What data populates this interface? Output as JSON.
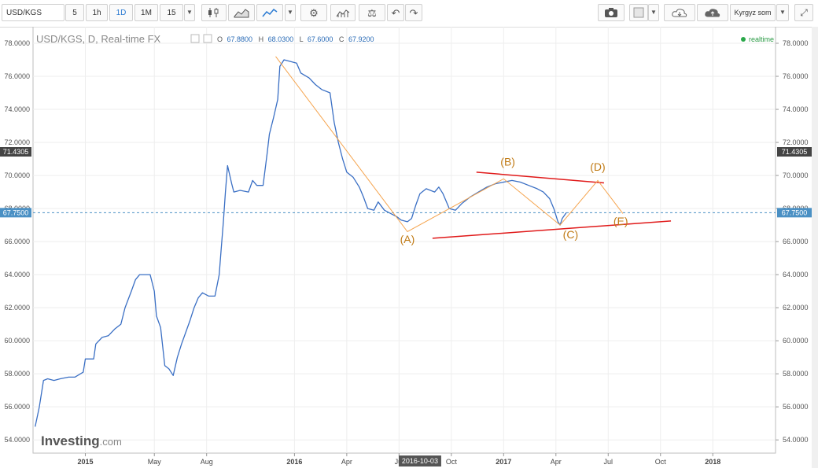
{
  "toolbar": {
    "symbol": "USD/KGS",
    "intervals": [
      "5",
      "1h",
      "1D",
      "1M",
      "15"
    ],
    "active_interval": "1D",
    "currency_label": "Kyrgyz som"
  },
  "header": {
    "title": "USD/KGS, D, Real-time FX",
    "o_label": "O",
    "o_value": "67.8800",
    "h_label": "H",
    "h_value": "68.0300",
    "l_label": "L",
    "l_value": "67.6000",
    "c_label": "C",
    "c_value": "67.9200",
    "realtime": "realtime"
  },
  "watermark": {
    "bold": "Investing",
    "light": ".com"
  },
  "colors": {
    "line": "#3a6fc4",
    "trend": "#e01919",
    "wave": "#f5a44e",
    "wave_label": "#c07a14",
    "current": "#4a90c4",
    "marker": "#444444"
  },
  "chart_data": {
    "type": "line",
    "series": [
      {
        "values": [
          [
            2014.76,
            54.8
          ],
          [
            2014.78,
            56.0
          ],
          [
            2014.8,
            57.6
          ],
          [
            2014.82,
            57.7
          ],
          [
            2014.85,
            57.6
          ],
          [
            2014.88,
            57.7
          ],
          [
            2014.92,
            57.8
          ],
          [
            2014.95,
            57.8
          ],
          [
            2014.99,
            58.1
          ],
          [
            2015.0,
            58.9
          ],
          [
            2015.04,
            58.9
          ],
          [
            2015.05,
            59.8
          ],
          [
            2015.08,
            60.2
          ],
          [
            2015.11,
            60.3
          ],
          [
            2015.14,
            60.7
          ],
          [
            2015.17,
            61.0
          ],
          [
            2015.19,
            62.0
          ],
          [
            2015.22,
            63.0
          ],
          [
            2015.24,
            63.7
          ],
          [
            2015.26,
            64.0
          ],
          [
            2015.28,
            64.0
          ],
          [
            2015.31,
            64.0
          ],
          [
            2015.33,
            63.0
          ],
          [
            2015.34,
            61.5
          ],
          [
            2015.36,
            60.8
          ],
          [
            2015.38,
            58.5
          ],
          [
            2015.4,
            58.3
          ],
          [
            2015.42,
            57.9
          ],
          [
            2015.44,
            59.0
          ],
          [
            2015.46,
            59.8
          ],
          [
            2015.48,
            60.5
          ],
          [
            2015.5,
            61.2
          ],
          [
            2015.52,
            62.0
          ],
          [
            2015.54,
            62.6
          ],
          [
            2015.56,
            62.9
          ],
          [
            2015.59,
            62.7
          ],
          [
            2015.62,
            62.7
          ],
          [
            2015.64,
            64.0
          ],
          [
            2015.65,
            65.6
          ],
          [
            2015.66,
            67.2
          ],
          [
            2015.67,
            69.0
          ],
          [
            2015.68,
            70.6
          ],
          [
            2015.7,
            69.5
          ],
          [
            2015.71,
            69.0
          ],
          [
            2015.74,
            69.1
          ],
          [
            2015.78,
            69.0
          ],
          [
            2015.8,
            69.7
          ],
          [
            2015.82,
            69.4
          ],
          [
            2015.85,
            69.4
          ],
          [
            2015.87,
            71.4
          ],
          [
            2015.88,
            72.5
          ],
          [
            2015.9,
            73.5
          ],
          [
            2015.92,
            74.6
          ],
          [
            2015.93,
            76.6
          ],
          [
            2015.95,
            77.0
          ],
          [
            2015.98,
            76.9
          ],
          [
            2016.01,
            76.8
          ],
          [
            2016.03,
            76.2
          ],
          [
            2016.07,
            75.9
          ],
          [
            2016.1,
            75.5
          ],
          [
            2016.13,
            75.2
          ],
          [
            2016.17,
            75.0
          ],
          [
            2016.19,
            73.2
          ],
          [
            2016.21,
            72.0
          ],
          [
            2016.23,
            71.0
          ],
          [
            2016.25,
            70.2
          ],
          [
            2016.28,
            69.9
          ],
          [
            2016.31,
            69.3
          ],
          [
            2016.33,
            68.7
          ],
          [
            2016.35,
            68.0
          ],
          [
            2016.38,
            67.9
          ],
          [
            2016.4,
            68.4
          ],
          [
            2016.43,
            67.9
          ],
          [
            2016.46,
            67.7
          ],
          [
            2016.49,
            67.5
          ],
          [
            2016.51,
            67.3
          ],
          [
            2016.54,
            67.2
          ],
          [
            2016.56,
            67.4
          ],
          [
            2016.58,
            68.2
          ],
          [
            2016.6,
            68.9
          ],
          [
            2016.63,
            69.2
          ],
          [
            2016.67,
            69.0
          ],
          [
            2016.69,
            69.3
          ],
          [
            2016.71,
            68.9
          ],
          [
            2016.74,
            68.0
          ],
          [
            2016.77,
            67.9
          ],
          [
            2016.8,
            68.3
          ],
          [
            2016.84,
            68.7
          ],
          [
            2016.88,
            69.0
          ],
          [
            2016.92,
            69.3
          ],
          [
            2016.96,
            69.5
          ],
          [
            2017.0,
            69.6
          ],
          [
            2017.04,
            69.7
          ],
          [
            2017.08,
            69.6
          ],
          [
            2017.12,
            69.4
          ],
          [
            2017.16,
            69.2
          ],
          [
            2017.19,
            69.0
          ],
          [
            2017.22,
            68.6
          ],
          [
            2017.24,
            68.0
          ],
          [
            2017.26,
            67.2
          ],
          [
            2017.27,
            67.0
          ],
          [
            2017.28,
            67.4
          ],
          [
            2017.3,
            67.75
          ]
        ]
      }
    ],
    "y_ticks": [
      "54.0000",
      "56.0000",
      "58.0000",
      "60.0000",
      "62.0000",
      "64.0000",
      "66.0000",
      "68.0000",
      "70.0000",
      "72.0000",
      "74.0000",
      "76.0000",
      "78.0000"
    ],
    "x_ticks": [
      "2015",
      "May",
      "Aug",
      "2016",
      "Apr",
      "Jul",
      "Oct",
      "2017",
      "Apr",
      "Jul",
      "Oct",
      "2018"
    ],
    "crosshair_x_label": "2016-10-03",
    "price_markers": [
      {
        "label": "71.4305",
        "value": 71.4305
      },
      {
        "label": "67.7500",
        "value": 67.75
      }
    ],
    "trendlines": [
      {
        "from": [
          2016.87,
          70.2
        ],
        "to": [
          2017.48,
          69.55
        ]
      },
      {
        "from": [
          2016.66,
          66.2
        ],
        "to": [
          2017.8,
          67.25
        ]
      }
    ],
    "wave_path": [
      [
        2015.91,
        77.2
      ],
      [
        2016.54,
        66.6
      ],
      [
        2017.0,
        69.8
      ],
      [
        2017.27,
        67.0
      ],
      [
        2017.45,
        69.7
      ],
      [
        2017.57,
        67.7
      ]
    ],
    "wave_labels": [
      {
        "label": "(A)",
        "x": 2016.54,
        "y": 65.9
      },
      {
        "label": "(B)",
        "x": 2017.02,
        "y": 70.6
      },
      {
        "label": "(C)",
        "x": 2017.32,
        "y": 66.2
      },
      {
        "label": "(D)",
        "x": 2017.45,
        "y": 70.3
      },
      {
        "label": "(E)",
        "x": 2017.56,
        "y": 67.0
      }
    ],
    "xlim": [
      2014.75,
      2018.3
    ],
    "ylim": [
      53.2,
      79.0
    ]
  }
}
